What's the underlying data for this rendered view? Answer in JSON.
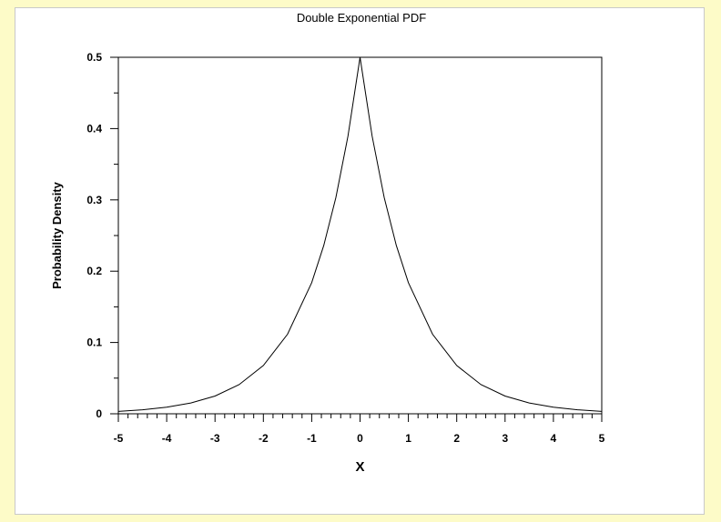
{
  "chart_data": {
    "type": "line",
    "title": "Double Exponential PDF",
    "xlabel": "X",
    "ylabel": "Probability Density",
    "xlim": [
      -5,
      5
    ],
    "ylim": [
      0,
      0.5
    ],
    "x_ticks": [
      -5,
      -4,
      -3,
      -2,
      -1,
      0,
      1,
      2,
      3,
      4,
      5
    ],
    "x_tick_labels": [
      "-5",
      "-4",
      "-3",
      "-2",
      "-1",
      "0",
      "1",
      "2",
      "3",
      "4",
      "5"
    ],
    "y_ticks": [
      0,
      0.1,
      0.2,
      0.3,
      0.4,
      0.5
    ],
    "y_tick_labels": [
      "0",
      "0.1",
      "0.2",
      "0.3",
      "0.4",
      "0.5"
    ],
    "grid": false,
    "legend": "none",
    "series": [
      {
        "x": [
          -5,
          -4.5,
          -4,
          -3.5,
          -3,
          -2.5,
          -2,
          -1.5,
          -1,
          -0.75,
          -0.5,
          -0.25,
          0,
          0.25,
          0.5,
          0.75,
          1,
          1.5,
          2,
          2.5,
          3,
          3.5,
          4,
          4.5,
          5
        ],
        "y": [
          0.0034,
          0.0056,
          0.0092,
          0.0151,
          0.0249,
          0.041,
          0.0677,
          0.1116,
          0.1839,
          0.2362,
          0.3033,
          0.3894,
          0.5,
          0.3894,
          0.3033,
          0.2362,
          0.1839,
          0.1116,
          0.0677,
          0.041,
          0.0249,
          0.0151,
          0.0092,
          0.0056,
          0.0034
        ]
      }
    ],
    "colors": {
      "page_background": "#fdfbc8",
      "panel_background": "#ffffff",
      "panel_border": "#c9c9c9",
      "line": "#000000",
      "axes": "#000000"
    }
  }
}
